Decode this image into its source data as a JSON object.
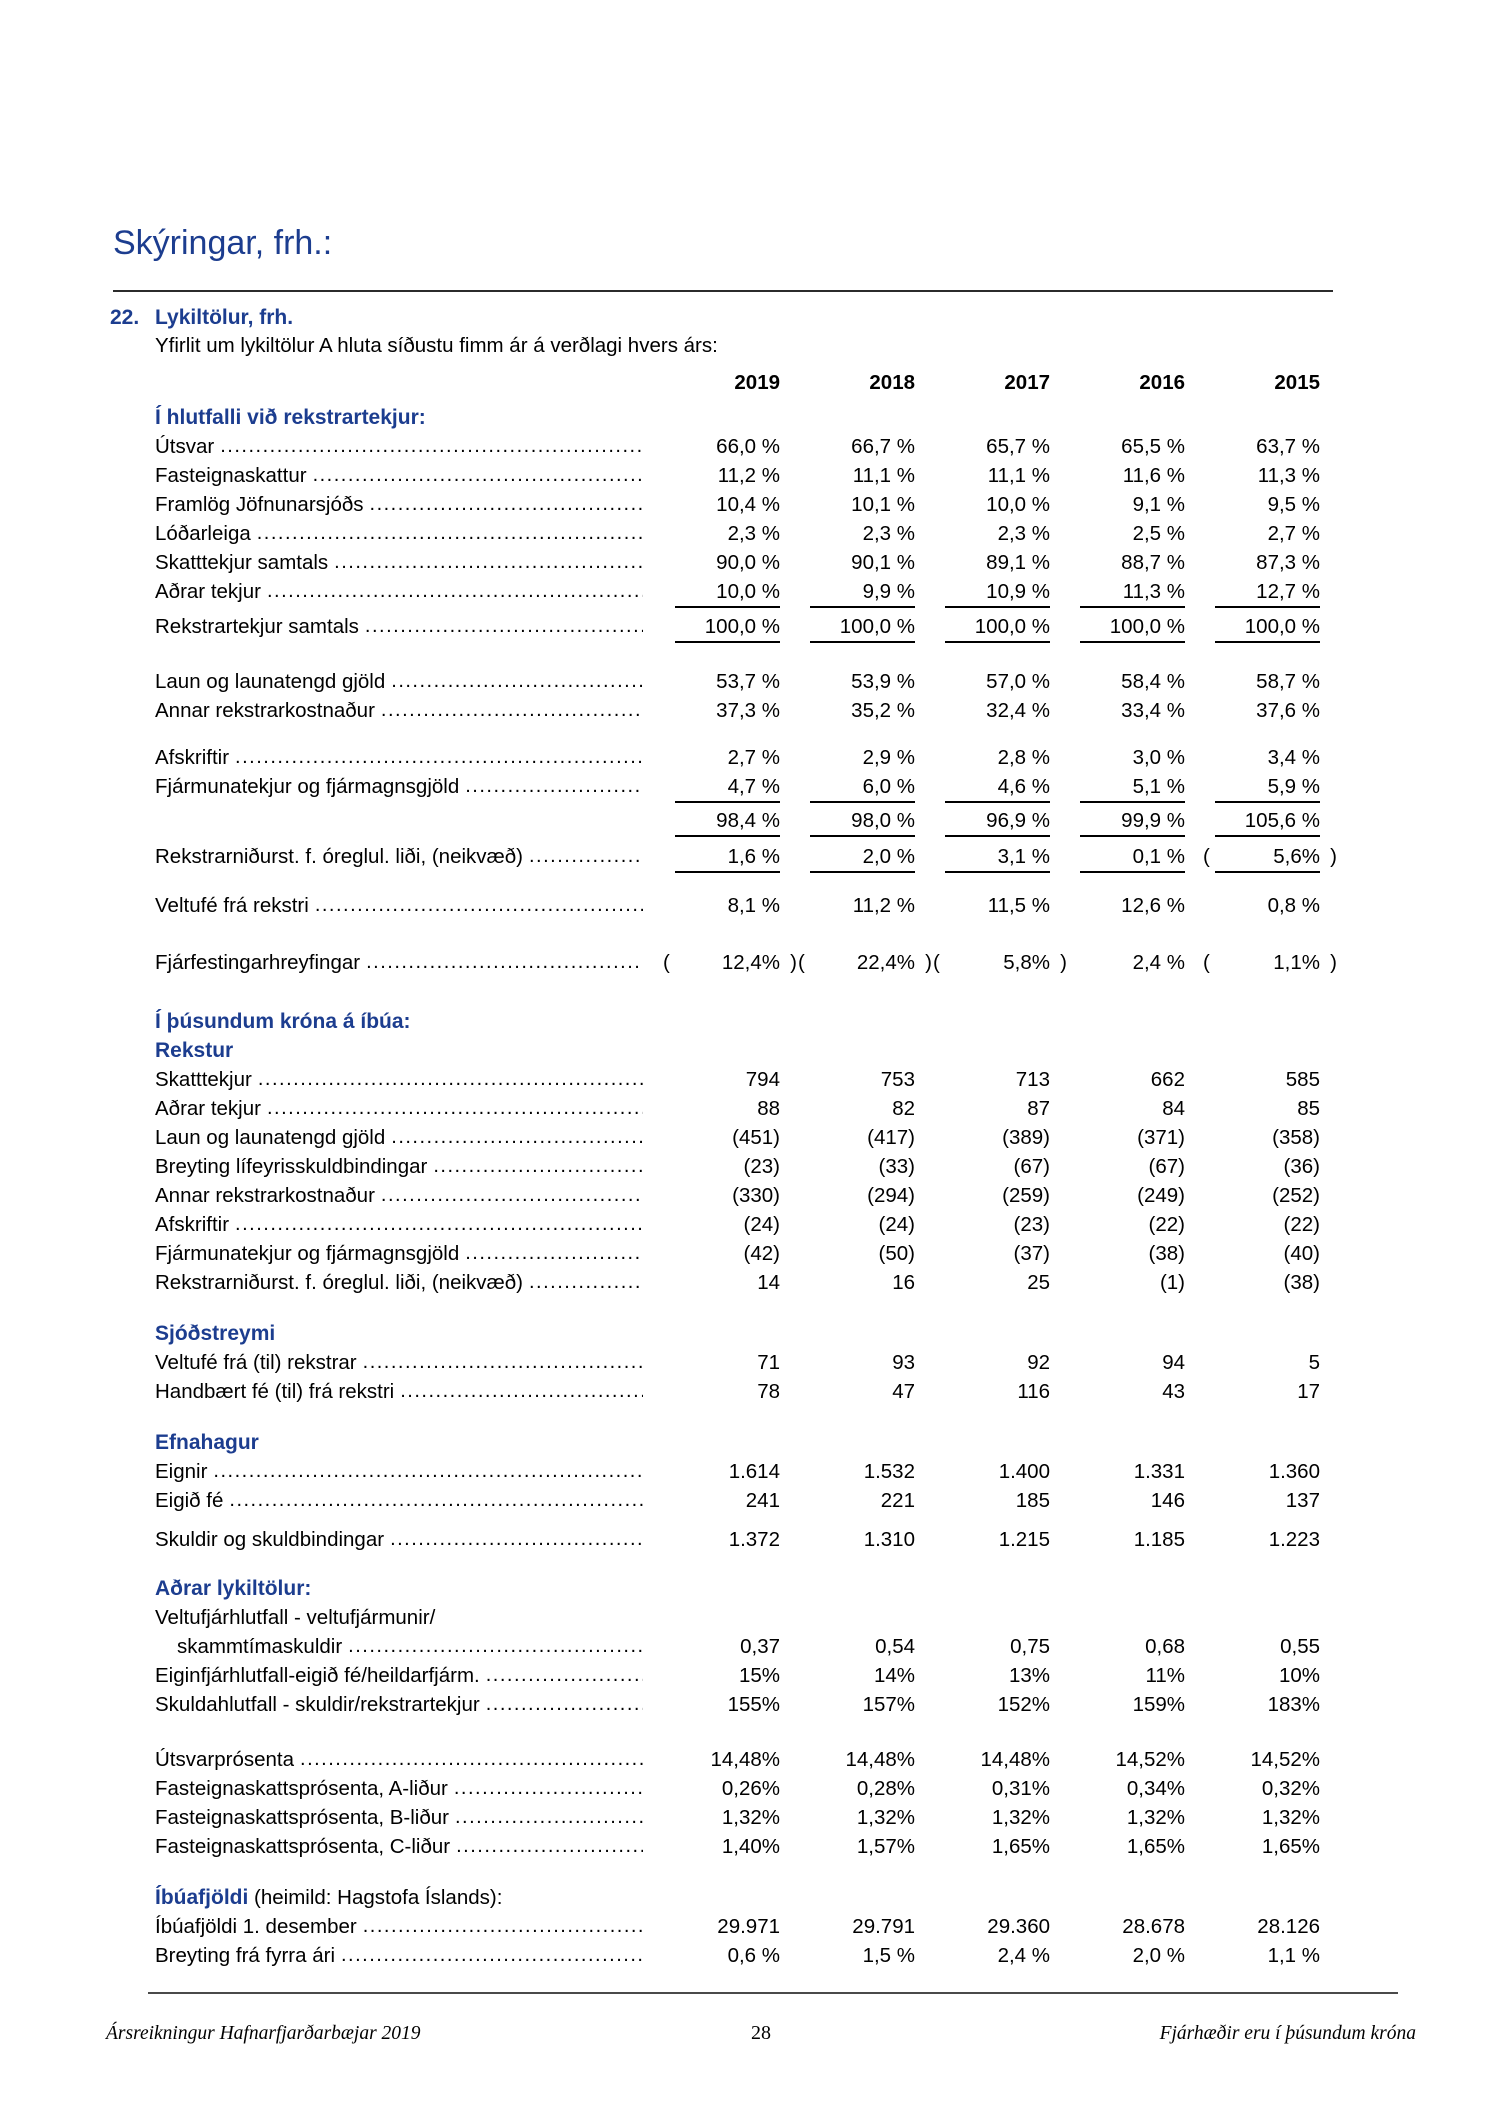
{
  "page": {
    "title": "Skýringar, frh.:",
    "note_number": "22.",
    "note_title": "Lykiltölur, frh.",
    "note_subtitle": "Yfirlit um lykiltölur A hluta síðustu fimm ár á verðlagi hvers árs:"
  },
  "colors": {
    "heading_blue": "#1c3d8f"
  },
  "table": {
    "years": [
      "2019",
      "2018",
      "2017",
      "2016",
      "2015"
    ],
    "sections": [
      {
        "heading": "Í hlutfalli við rekstrartekjur:",
        "mt": 6,
        "rows": [
          {
            "label": "Útsvar",
            "values": [
              "66,0 %",
              "66,7 %",
              "65,7 %",
              "65,5 %",
              "63,7 %"
            ]
          },
          {
            "label": "Fasteignaskattur",
            "values": [
              "11,2 %",
              "11,1 %",
              "11,1 %",
              "11,6 %",
              "11,3 %"
            ]
          },
          {
            "label": "Framlög Jöfnunarsjóðs",
            "values": [
              "10,4 %",
              "10,1 %",
              "10,0 %",
              "9,1 %",
              "9,5 %"
            ]
          },
          {
            "label": "Lóðarleiga",
            "values": [
              "2,3 %",
              "2,3 %",
              "2,3 %",
              "2,5 %",
              "2,7 %"
            ]
          },
          {
            "label": "Skatttekjur samtals",
            "values": [
              "90,0 %",
              "90,1 %",
              "89,1 %",
              "88,7 %",
              "87,3 %"
            ]
          },
          {
            "label": "Aðrar tekjur",
            "ul": true,
            "values": [
              "10,0 %",
              "9,9 %",
              "10,9 %",
              "11,3 %",
              "12,7 %"
            ]
          },
          {
            "label": "Rekstrartekjur samtals",
            "ul": true,
            "gap": 4,
            "values": [
              "100,0 %",
              "100,0 %",
              "100,0 %",
              "100,0 %",
              "100,0 %"
            ]
          },
          {
            "label": "Laun og launatengd gjöld",
            "gap": 24,
            "values": [
              "53,7 %",
              "53,9 %",
              "57,0 %",
              "58,4 %",
              "58,7 %"
            ]
          },
          {
            "label": "Annar rekstrarkostnaður",
            "values": [
              "37,3 %",
              "35,2 %",
              "32,4 %",
              "33,4 %",
              "37,6 %"
            ]
          },
          {
            "label": "Afskriftir",
            "gap": 18,
            "values": [
              "2,7 %",
              "2,9 %",
              "2,8 %",
              "3,0 %",
              "3,4 %"
            ]
          },
          {
            "label": "Fjármunatekjur og fjármagnsgjöld",
            "ul": true,
            "values": [
              "4,7 %",
              "6,0 %",
              "4,6 %",
              "5,1 %",
              "5,9 %"
            ]
          },
          {
            "label": "",
            "dots": false,
            "ul": true,
            "gap": 3,
            "values": [
              "98,4 %",
              "98,0 %",
              "96,9 %",
              "99,9 %",
              "105,6 %"
            ]
          },
          {
            "label": "Rekstrarniðurst. f. óreglul. liði, (neikvæð)",
            "ul": true,
            "gap": 5,
            "values": [
              "1,6 %",
              "2,0 %",
              "3,1 %",
              "0,1 %",
              "( 5,6% )"
            ]
          },
          {
            "label": "Veltufé  frá rekstri",
            "gap": 18,
            "values": [
              "8,1 %",
              "11,2 %",
              "11,5 %",
              "12,6 %",
              "0,8 %"
            ]
          },
          {
            "label": "Fjárfestingarhreyfingar",
            "gap": 28,
            "values": [
              "( 12,4% )",
              "( 22,4% )",
              "( 5,8% )",
              "2,4 %",
              "( 1,1% )"
            ]
          }
        ]
      },
      {
        "heading": "Í þúsundum króna á íbúa:",
        "mt": 30,
        "rows": []
      },
      {
        "heading": "Rekstur",
        "mt": 0,
        "rows": [
          {
            "label": "Skatttekjur",
            "values": [
              "794",
              "753",
              "713",
              "662",
              "585"
            ]
          },
          {
            "label": "Aðrar tekjur",
            "values": [
              "88",
              "82",
              "87",
              "84",
              "85"
            ]
          },
          {
            "label": "Laun og launatengd gjöld",
            "values": [
              "(451)",
              "(417)",
              "(389)",
              "(371)",
              "(358)"
            ]
          },
          {
            "label": "Breyting lífeyrisskuldbindingar",
            "values": [
              "(23)",
              "(33)",
              "(67)",
              "(67)",
              "(36)"
            ]
          },
          {
            "label": "Annar rekstrarkostnaður",
            "values": [
              "(330)",
              "(294)",
              "(259)",
              "(249)",
              "(252)"
            ]
          },
          {
            "label": "Afskriftir",
            "values": [
              "(24)",
              "(24)",
              "(23)",
              "(22)",
              "(22)"
            ]
          },
          {
            "label": "Fjármunatekjur og fjármagnsgjöld",
            "values": [
              "(42)",
              "(50)",
              "(37)",
              "(38)",
              "(40)"
            ]
          },
          {
            "label": "Rekstrarniðurst. f. óreglul. liði, (neikvæð)",
            "values": [
              "14",
              "16",
              "25",
              "(1)",
              "(38)"
            ]
          }
        ]
      },
      {
        "heading": "Sjóðstreymi",
        "mt": 22,
        "rows": [
          {
            "label": "Veltufé frá (til) rekstrar",
            "values": [
              "71",
              "93",
              "92",
              "94",
              "5"
            ]
          },
          {
            "label": "Handbært fé (til) frá rekstri",
            "values": [
              "78",
              "47",
              "116",
              "43",
              "17"
            ]
          }
        ]
      },
      {
        "heading": "Efnahagur",
        "mt": 22,
        "rows": [
          {
            "label": "Eignir",
            "values": [
              "1.614",
              "1.532",
              "1.400",
              "1.331",
              "1.360"
            ]
          },
          {
            "label": "Eigið fé",
            "values": [
              "241",
              "221",
              "185",
              "146",
              "137"
            ]
          },
          {
            "label": "Skuldir og skuldbindingar",
            "gap": 10,
            "values": [
              "1.372",
              "1.310",
              "1.215",
              "1.185",
              "1.223"
            ]
          }
        ]
      },
      {
        "heading": "Aðrar lykiltölur:",
        "mt": 20,
        "rows": [
          {
            "label": "Veltufjárhlutfall - veltufjármunir/",
            "dots": false,
            "values": []
          },
          {
            "label": "skammtímaskuldir",
            "indent": true,
            "values": [
              "0,37",
              "0,54",
              "0,75",
              "0,68",
              "0,55"
            ]
          },
          {
            "label": "Eiginfjárhlutfall-eigið fé/heildarfjárm.",
            "values": [
              "15%",
              "14%",
              "13%",
              "11%",
              "10%"
            ]
          },
          {
            "label": "Skuldahlutfall - skuldir/rekstrartekjur",
            "values": [
              "155%",
              "157%",
              "152%",
              "159%",
              "183%"
            ]
          },
          {
            "label": "Útsvarprósenta",
            "gap": 26,
            "values": [
              "14,48%",
              "14,48%",
              "14,48%",
              "14,52%",
              "14,52%"
            ]
          },
          {
            "label": "Fasteignaskattsprósenta, A-liður",
            "values": [
              "0,26%",
              "0,28%",
              "0,31%",
              "0,34%",
              "0,32%"
            ]
          },
          {
            "label": "Fasteignaskattsprósenta, B-liður",
            "values": [
              "1,32%",
              "1,32%",
              "1,32%",
              "1,32%",
              "1,32%"
            ]
          },
          {
            "label": "Fasteignaskattsprósenta, C-liður",
            "values": [
              "1,40%",
              "1,57%",
              "1,65%",
              "1,65%",
              "1,65%"
            ]
          }
        ]
      },
      {
        "heading": "Íbúafjöldi",
        "heading_suffix": " (heimild: Hagstofa Íslands):",
        "mt": 22,
        "rows": [
          {
            "label": "Íbúafjöldi 1. desember",
            "values": [
              "29.971",
              "29.791",
              "29.360",
              "28.678",
              "28.126"
            ]
          },
          {
            "label": "Breyting frá fyrra ári",
            "values": [
              "0,6 %",
              "1,5 %",
              "2,4 %",
              "2,0 %",
              "1,1 %"
            ]
          }
        ]
      }
    ]
  },
  "footer": {
    "left": "Ársreikningur Hafnarfjarðarbæjar 2019",
    "page_number": "28",
    "right": "Fjárhæðir eru í þúsundum króna"
  }
}
